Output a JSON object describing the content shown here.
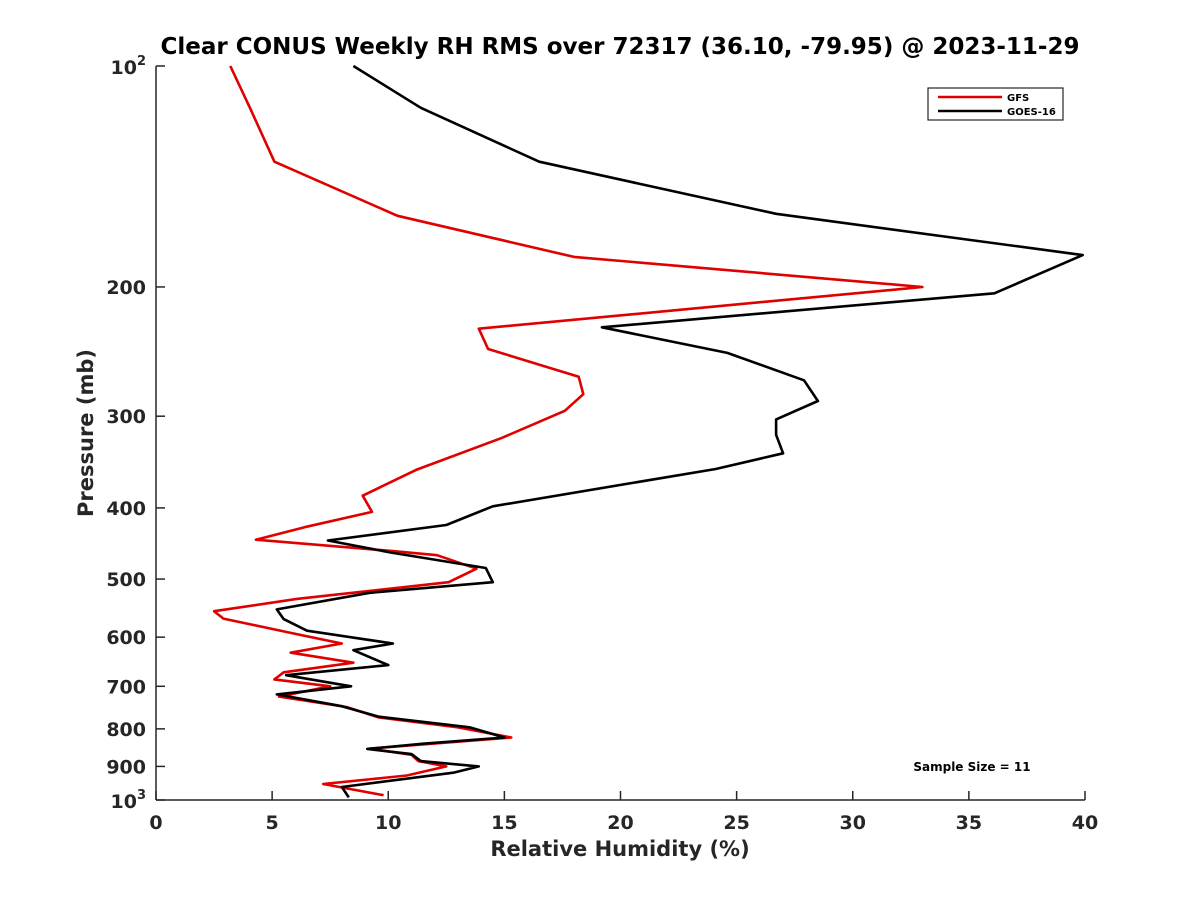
{
  "chart_data": {
    "type": "line",
    "title": "Clear CONUS Weekly RH RMS over 72317 (36.10, -79.95) @ 2023-11-29",
    "xlabel": "Relative Humidity (%)",
    "ylabel": "Pressure (mb)",
    "xlim": [
      0,
      40
    ],
    "ylim": [
      100,
      1000
    ],
    "yscale": "log",
    "y_reversed": true,
    "grid": false,
    "legend_position": "top-right",
    "x_ticks": [
      "0",
      "5",
      "10",
      "15",
      "20",
      "25",
      "30",
      "35",
      "40"
    ],
    "y_ticks": [
      {
        "value": 200,
        "label": "200"
      },
      {
        "value": 300,
        "label": "300"
      },
      {
        "value": 400,
        "label": "400"
      },
      {
        "value": 500,
        "label": "500"
      },
      {
        "value": 600,
        "label": "600"
      },
      {
        "value": 700,
        "label": "700"
      },
      {
        "value": 800,
        "label": "800"
      },
      {
        "value": 900,
        "label": "900"
      }
    ],
    "y_ticks_power": [
      {
        "value": 100,
        "base": "10",
        "exp": "2"
      },
      {
        "value": 1000,
        "base": "10",
        "exp": "3"
      }
    ],
    "annotation": "Sample Size = 11",
    "series": [
      {
        "name": "GFS",
        "color": "#e00000",
        "points": [
          [
            3.2,
            100
          ],
          [
            4.1,
            115
          ],
          [
            5.1,
            135
          ],
          [
            10.4,
            160
          ],
          [
            18.0,
            182
          ],
          [
            33.0,
            200
          ],
          [
            13.9,
            228
          ],
          [
            14.3,
            243
          ],
          [
            18.2,
            265
          ],
          [
            18.4,
            280
          ],
          [
            17.6,
            295
          ],
          [
            14.9,
            321
          ],
          [
            11.2,
            355
          ],
          [
            8.9,
            385
          ],
          [
            9.3,
            405
          ],
          [
            6.4,
            425
          ],
          [
            4.3,
            442
          ],
          [
            10.2,
            458
          ],
          [
            12.1,
            464
          ],
          [
            13.8,
            484
          ],
          [
            12.6,
            505
          ],
          [
            6.1,
            532
          ],
          [
            2.5,
            553
          ],
          [
            2.9,
            566
          ],
          [
            5.8,
            592
          ],
          [
            8.0,
            612
          ],
          [
            5.8,
            630
          ],
          [
            8.5,
            650
          ],
          [
            5.5,
            670
          ],
          [
            5.1,
            685
          ],
          [
            7.5,
            700
          ],
          [
            5.3,
            723
          ],
          [
            8.2,
            747
          ],
          [
            9.6,
            772
          ],
          [
            13.0,
            796
          ],
          [
            15.3,
            822
          ],
          [
            9.2,
            851
          ],
          [
            11.0,
            868
          ],
          [
            11.3,
            885
          ],
          [
            12.5,
            900
          ],
          [
            10.8,
            926
          ],
          [
            7.2,
            951
          ],
          [
            9.8,
            985
          ]
        ]
      },
      {
        "name": "GOES-16",
        "color": "#000000",
        "points": [
          [
            8.5,
            100
          ],
          [
            11.4,
            114
          ],
          [
            16.5,
            135
          ],
          [
            26.7,
            159
          ],
          [
            39.9,
            181
          ],
          [
            36.1,
            204
          ],
          [
            19.2,
            227
          ],
          [
            24.6,
            246
          ],
          [
            27.9,
            268
          ],
          [
            28.5,
            286
          ],
          [
            26.7,
            303
          ],
          [
            26.7,
            318
          ],
          [
            27.0,
            337
          ],
          [
            24.1,
            354
          ],
          [
            14.5,
            398
          ],
          [
            12.5,
            422
          ],
          [
            7.4,
            443
          ],
          [
            10.1,
            460
          ],
          [
            14.2,
            483
          ],
          [
            14.5,
            505
          ],
          [
            9.2,
            522
          ],
          [
            5.2,
            550
          ],
          [
            5.5,
            567
          ],
          [
            6.5,
            588
          ],
          [
            10.2,
            612
          ],
          [
            8.5,
            625
          ],
          [
            10.0,
            655
          ],
          [
            5.6,
            676
          ],
          [
            8.4,
            700
          ],
          [
            5.2,
            718
          ],
          [
            8.0,
            745
          ],
          [
            9.6,
            770
          ],
          [
            13.5,
            796
          ],
          [
            15.0,
            822
          ],
          [
            11.5,
            838
          ],
          [
            9.1,
            852
          ],
          [
            11.0,
            866
          ],
          [
            11.4,
            885
          ],
          [
            13.9,
            900
          ],
          [
            12.8,
            918
          ],
          [
            8.0,
            960
          ],
          [
            8.3,
            992
          ]
        ]
      }
    ]
  }
}
